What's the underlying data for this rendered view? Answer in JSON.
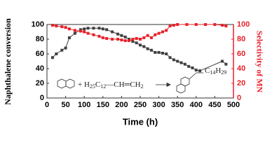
{
  "chart_data": {
    "type": "line",
    "x_label": "Time (h)",
    "y_label": "Naphthalene conversion",
    "y2_label": "Selectivity of MN",
    "xlim": [
      0,
      500
    ],
    "xticks": [
      0,
      50,
      100,
      150,
      200,
      250,
      300,
      350,
      400,
      450,
      500
    ],
    "ylim": [
      0,
      100
    ],
    "yticks": [
      0,
      20,
      40,
      60,
      80,
      100
    ],
    "y2lim": [
      0,
      100
    ],
    "y2ticks": [
      0,
      20,
      40,
      60,
      80,
      100
    ],
    "reagent_parts": [
      "+ H",
      "25",
      "C",
      "12",
      "—CH═CH",
      "2"
    ],
    "product_parts": [
      "C",
      "14",
      "H",
      "29"
    ],
    "series": [
      {
        "name": "Naphthalene conversion",
        "color": "#404040",
        "axis": "y",
        "x": [
          15,
          25,
          40,
          50,
          60,
          75,
          90,
          100,
          110,
          125,
          140,
          150,
          160,
          175,
          190,
          200,
          210,
          220,
          230,
          240,
          250,
          260,
          270,
          280,
          290,
          300,
          310,
          320,
          330,
          340,
          350,
          360,
          370,
          380,
          390,
          400,
          410,
          470,
          480
        ],
        "values": [
          55,
          60,
          65,
          68,
          82,
          88,
          93,
          94,
          95,
          95,
          95,
          94,
          93,
          90,
          87,
          85,
          83,
          80,
          77,
          75,
          72,
          70,
          67,
          65,
          62,
          62,
          61,
          60,
          55,
          52,
          50,
          48,
          46,
          43,
          41,
          38,
          37,
          50,
          46
        ]
      },
      {
        "name": "Selectivity of MN",
        "color": "#e8212a",
        "axis": "y2",
        "x": [
          15,
          25,
          40,
          50,
          60,
          75,
          90,
          100,
          110,
          125,
          140,
          150,
          160,
          175,
          190,
          200,
          210,
          220,
          230,
          240,
          250,
          260,
          270,
          280,
          290,
          300,
          310,
          320,
          330,
          340,
          350,
          375,
          400,
          425,
          450,
          470,
          480
        ],
        "values": [
          99,
          98,
          97,
          96,
          94,
          92,
          91,
          90,
          88,
          86,
          84,
          82,
          81,
          80,
          80,
          79,
          78,
          78,
          80,
          81,
          80,
          82,
          85,
          82,
          86,
          88,
          90,
          92,
          98,
          99,
          100,
          100,
          100,
          100,
          100,
          99,
          98
        ]
      }
    ]
  }
}
